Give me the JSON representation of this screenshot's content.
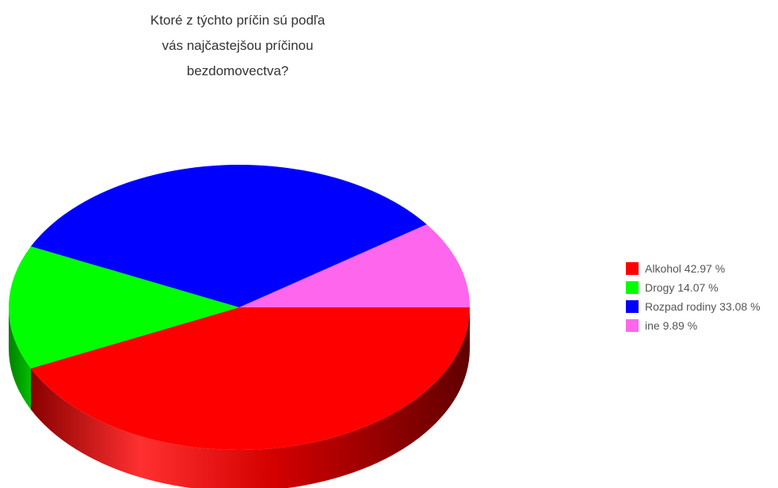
{
  "chart_data": {
    "type": "pie",
    "style": "3d",
    "title": "Ktoré z týchto príčin sú podľa vás najčastejšou príčinou bezdomovectva?",
    "title_lines": [
      "Ktoré z týchto príčin sú podľa",
      "vás najčastejšou príčinou",
      "bezdomovectva?"
    ],
    "legend_position": "right",
    "slices": [
      {
        "label": "Alkohol",
        "value": 42.97,
        "legend_text": "Alkohol 42.97 %",
        "color": "#ff0000",
        "side_color": "#b80000"
      },
      {
        "label": "Drogy",
        "value": 14.07,
        "legend_text": "Drogy 14.07 %",
        "color": "#00ff00",
        "side_color": "#00a000"
      },
      {
        "label": "Rozpad rodiny",
        "value": 33.08,
        "legend_text": "Rozpad rodiny 33.08 %",
        "color": "#0000ff",
        "side_color": "#0000a0"
      },
      {
        "label": "ine",
        "value": 9.89,
        "legend_text": "ine 9.89 %",
        "color": "#ff66ee",
        "side_color": "#b040a8"
      }
    ]
  }
}
